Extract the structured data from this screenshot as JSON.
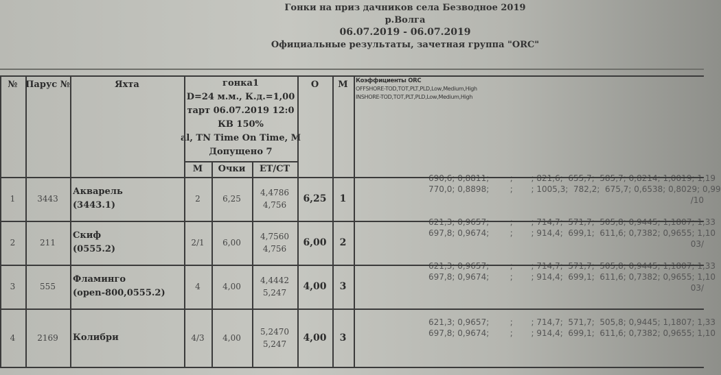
{
  "title": {
    "line1": "Гонки на приз дачников села Безводное 2019",
    "line2": "р.Волга",
    "line3": "06.07.2019 - 06.07.2019",
    "line4": "Официальные результаты, зачетная группа \"ORC\""
  },
  "header": {
    "no": "№",
    "sail": "Парус №",
    "yacht": "Яхта",
    "race": {
      "name": "гонка1",
      "distance": "D=24 м.м., К.д.=1,00",
      "start": "тарт 06.07.2019 12:0",
      "kv": "КВ 150%",
      "method": "al, TN Time On Time, M",
      "admitted": "Допущено 7",
      "sub": [
        "М",
        "Очки",
        "ET/CT"
      ]
    },
    "o": "О",
    "m": "М",
    "coef": {
      "title": "Коэффициенты ORC",
      "offshore": "OFFSHORE-TOD,TOT,PLT,PLD,Low,Medium,High",
      "inshore": "INSHORE-TOD,TOT,PLT,PLD,Low,Medium,High"
    }
  },
  "rows": [
    {
      "no": "1",
      "sail": "3443",
      "yacht": "Акварель",
      "yacht2": "(3443.1)",
      "m": "2",
      "points": "6,25",
      "et": "4,4786",
      "ct": "4,756",
      "o": "6,25",
      "place": "1",
      "coef1": "690,6; 0,8811;        ;       ; 821,6;  655,7;  585,7; 0,8214; 1,0019; 1,19",
      "coef2": "770,0; 0,8898;        ;       ; 1005,3;  782,2;  675,7; 0,6538; 0,8029; 0,99",
      "frag": "/10"
    },
    {
      "no": "2",
      "sail": "211",
      "yacht": "Скиф",
      "yacht2": "(0555.2)",
      "m": "2/1",
      "points": "6,00",
      "et": "4,7560",
      "ct": "4,756",
      "o": "6,00",
      "place": "2",
      "coef1": "621,3; 0,9657;        ;       ; 714,7;  571,7;  505,8; 0,9445; 1,1807; 1,33",
      "coef2": "697,8; 0,9674;        ;       ; 914,4;  699,1;  611,6; 0,7382; 0,9655; 1,10",
      "frag": "03/"
    },
    {
      "no": "3",
      "sail": "555",
      "yacht": "Фламинго",
      "yacht2": "(open-800,0555.2)",
      "m": "4",
      "points": "4,00",
      "et": "4,4442",
      "ct": "5,247",
      "o": "4,00",
      "place": "3",
      "coef1": "621,3; 0,9657;        ;       ; 714,7;  571,7;  505,8; 0,9445; 1,1807; 1,33",
      "coef2": "697,8; 0,9674;        ;       ; 914,4;  699,1;  611,6; 0,7382; 0,9655; 1,10",
      "frag": "03/"
    },
    {
      "no": "4",
      "sail": "2169",
      "yacht": "Колибри",
      "yacht2": "",
      "m": "4/3",
      "points": "4,00",
      "et": "5,2470",
      "ct": "5,247",
      "o": "4,00",
      "place": "3",
      "coef1": "621,3; 0,9657;        ;       ; 714,7;  571,7;  505,8; 0,9445; 1,1807; 1,33",
      "coef2": "697,8; 0,9674;        ;       ; 914,4;  699,1;  611,6; 0,7382; 0,9655; 1,10",
      "frag": ""
    }
  ]
}
